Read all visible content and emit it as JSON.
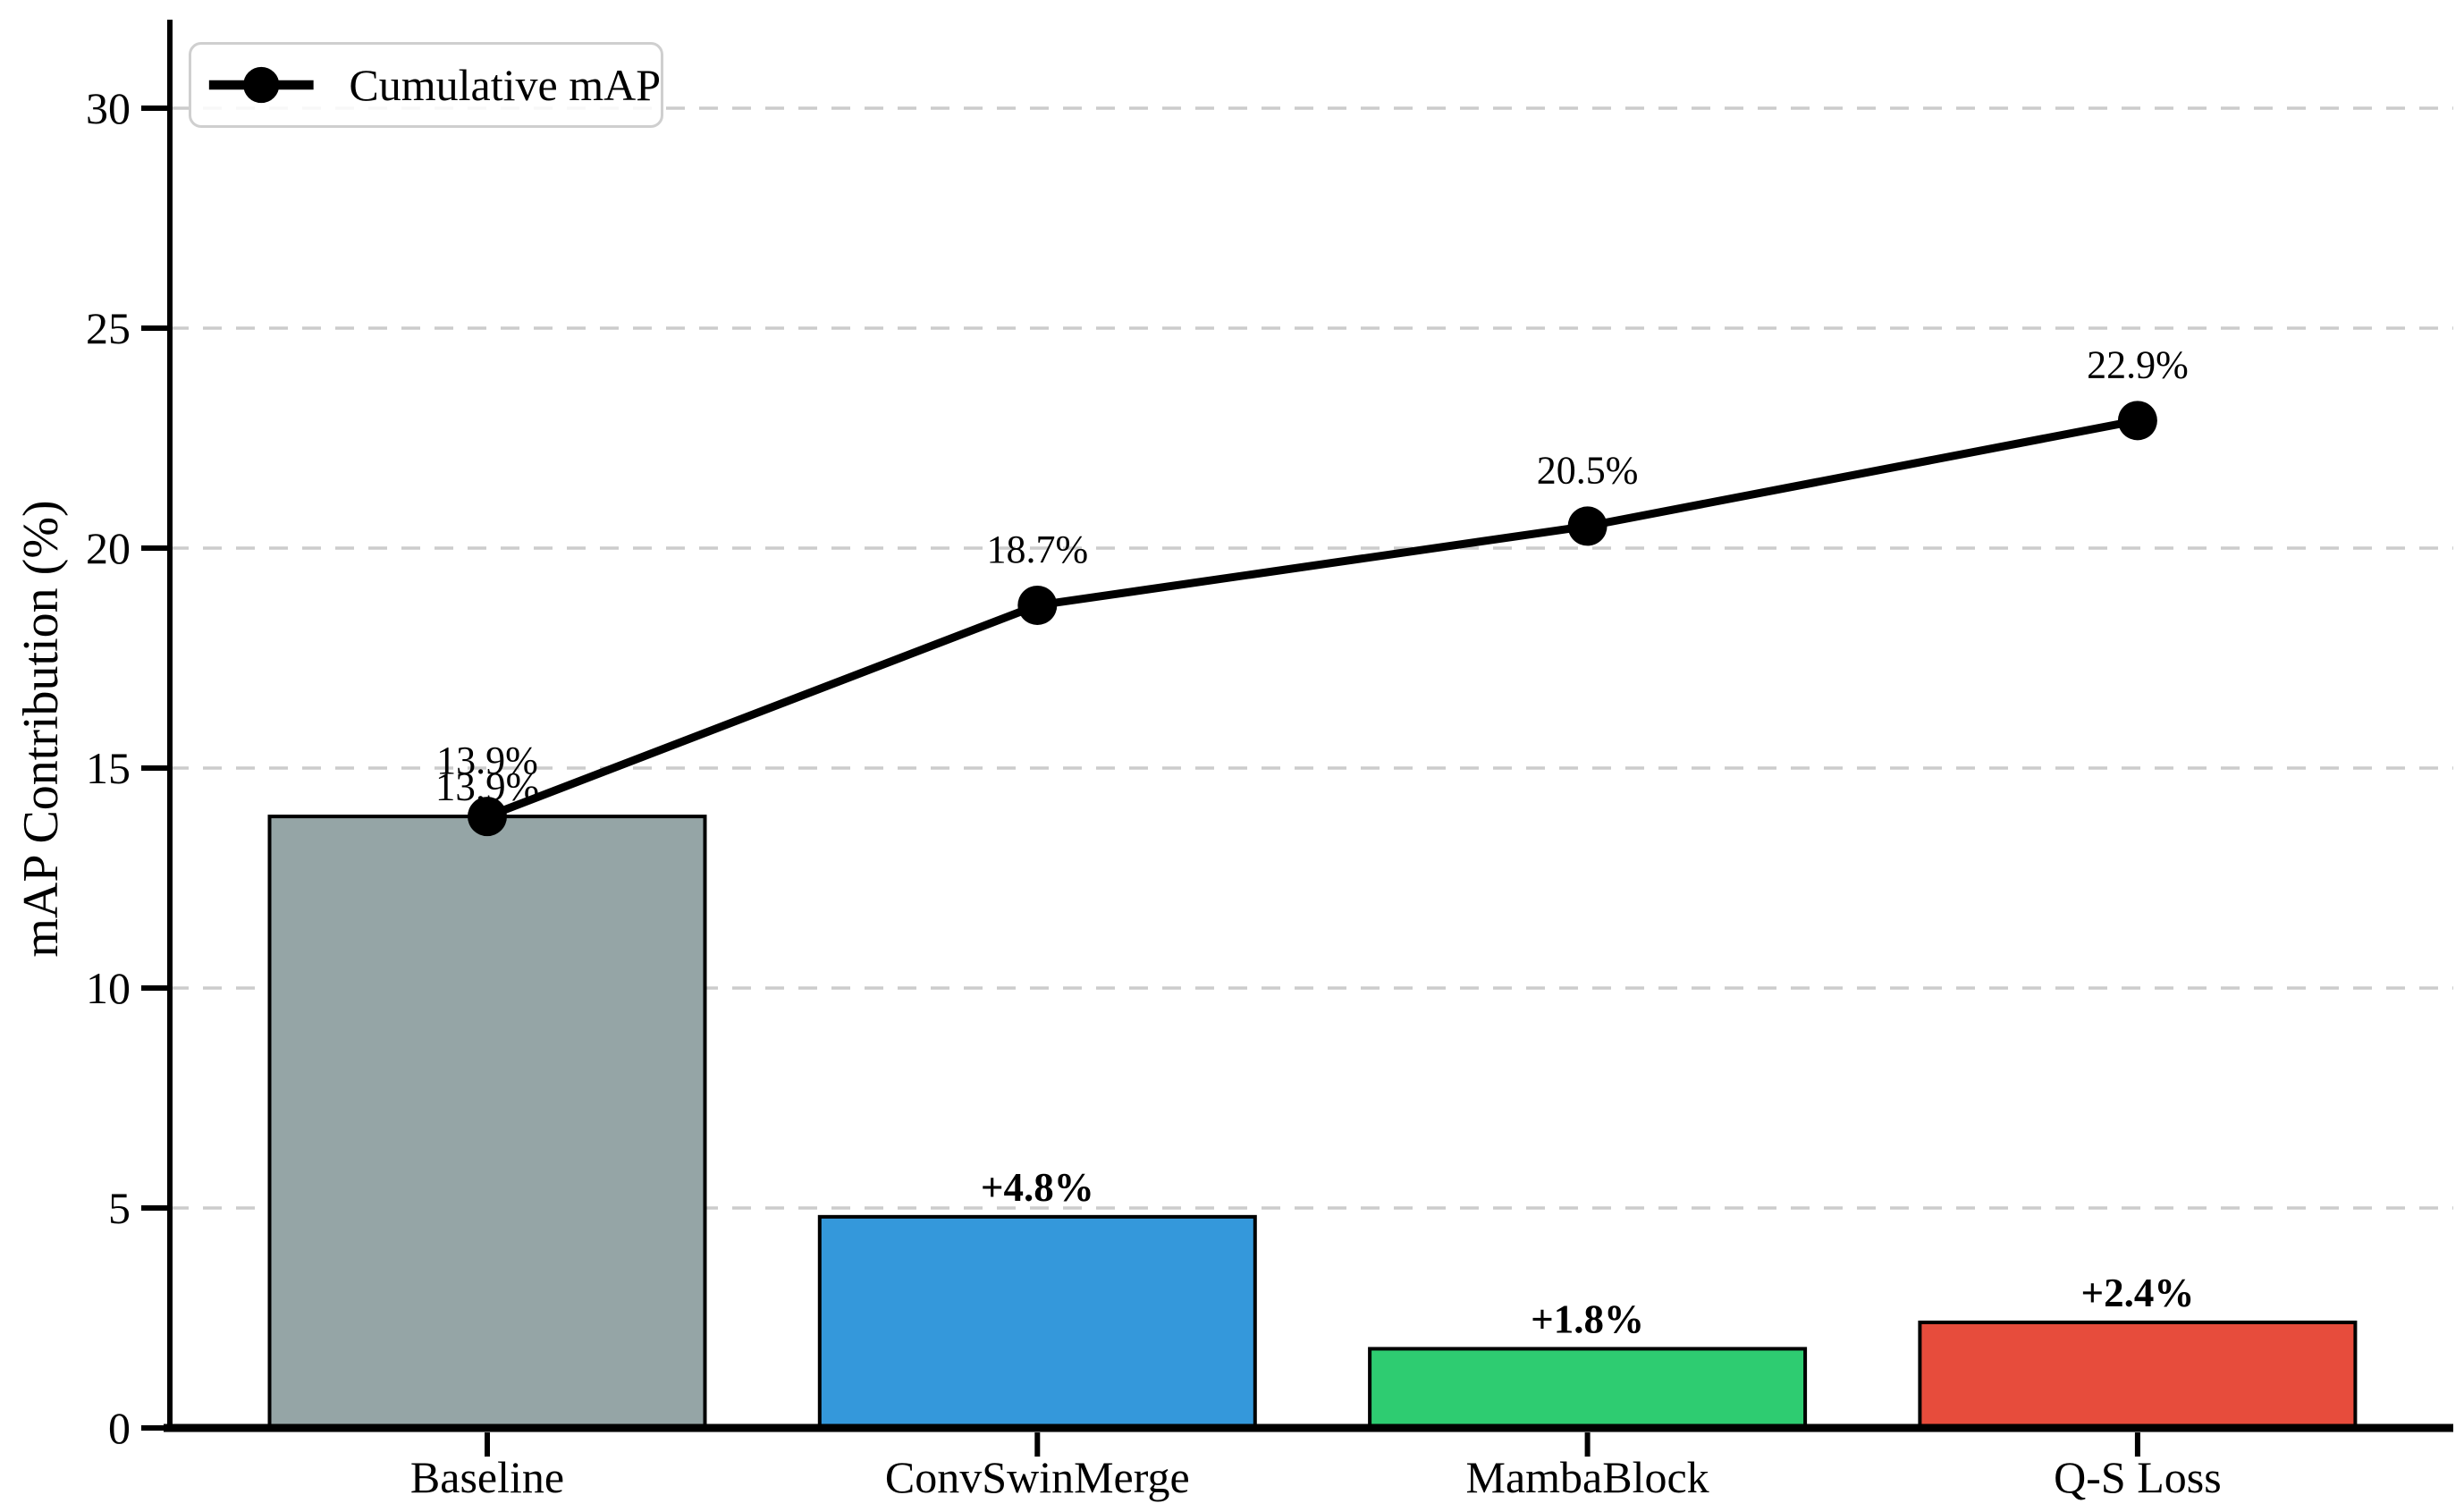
{
  "figure": {
    "background": "#ffffff"
  },
  "chart_data": {
    "type": "bar",
    "subtype": "pareto-bars-with-cumulative-line",
    "title": "",
    "xlabel": "",
    "ylabel": "mAP Contribution (%)",
    "categories": [
      "Baseline",
      "ConvSwinMerge",
      "MambaBlock",
      "Q-S Loss"
    ],
    "series": [
      {
        "name": "mAP Contribution bars",
        "type": "bar",
        "values": [
          13.9,
          4.8,
          1.8,
          2.4
        ],
        "bar_colors": [
          "#95a5a6",
          "#3498db",
          "#2ecc71",
          "#e74c3c"
        ],
        "bar_edge_color": "#000000",
        "labels": [
          "13.9%",
          "+4.8%",
          "+1.8%",
          "+2.4%"
        ],
        "label_bold": [
          false,
          true,
          true,
          true
        ]
      },
      {
        "name": "Cumulative mAP",
        "type": "line",
        "values": [
          13.9,
          18.7,
          20.5,
          22.9
        ],
        "labels": [
          "13.9%",
          "18.7%",
          "20.5%",
          "22.9%"
        ],
        "color": "#000000",
        "marker": "circle"
      }
    ],
    "yticks": [
      0,
      5,
      10,
      15,
      20,
      25,
      30
    ],
    "ylim": [
      0,
      31.8
    ],
    "grid": {
      "axis": "y",
      "style": "dashed",
      "color": "#cccccc"
    },
    "legend": {
      "position": "upper-left",
      "entries": [
        {
          "label": "Cumulative mAP",
          "marker": "line-with-circle",
          "color": "#000000"
        }
      ]
    }
  }
}
